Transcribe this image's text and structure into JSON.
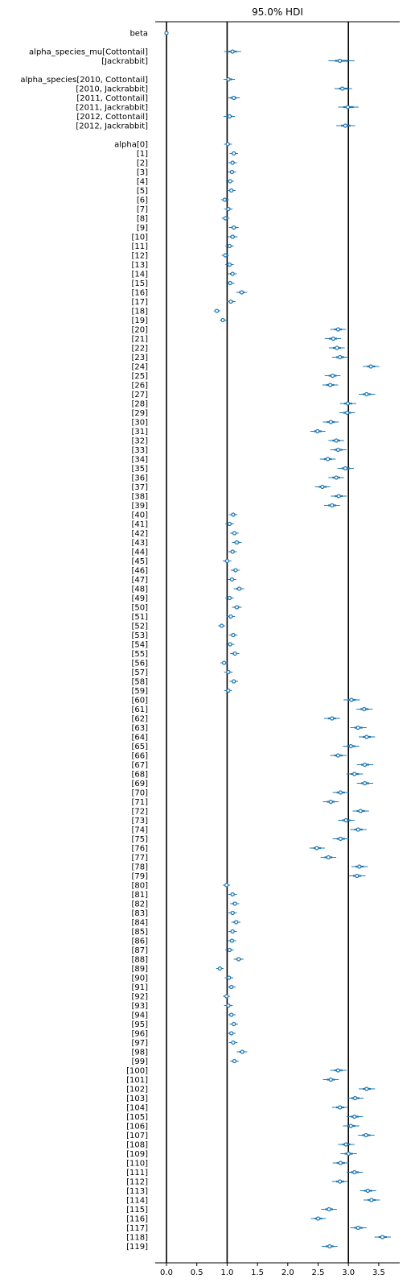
{
  "chart_data": {
    "type": "forest",
    "title": "95.0% HDI",
    "xlim": [
      -0.2,
      3.85
    ],
    "xticks": [
      "0.0",
      "0.5",
      "1.0",
      "1.5",
      "2.0",
      "2.5",
      "3.0",
      "3.5"
    ],
    "reference_lines": [
      0,
      1,
      3
    ],
    "series_color": "#1f77b4",
    "rows": [
      {
        "label": "beta",
        "mean": 0.0,
        "hdi": [
          -0.01,
          0.01
        ]
      },
      {
        "label": "",
        "gap": true
      },
      {
        "label": "alpha_species_mu[Cottontail]",
        "mean": 1.09,
        "hdi": [
          0.95,
          1.23
        ]
      },
      {
        "label": "[Jackrabbit]",
        "mean": 2.86,
        "hdi": [
          2.67,
          3.1
        ]
      },
      {
        "label": "",
        "gap": true
      },
      {
        "label": "alpha_species[2010, Cottontail]",
        "mean": 1.02,
        "hdi": [
          0.94,
          1.13
        ]
      },
      {
        "label": "[2010, Jackrabbit]",
        "mean": 2.9,
        "hdi": [
          2.77,
          3.06
        ]
      },
      {
        "label": "[2011, Cottontail]",
        "mean": 1.11,
        "hdi": [
          1.0,
          1.21
        ]
      },
      {
        "label": "[2011, Jackrabbit]",
        "mean": 2.99,
        "hdi": [
          2.83,
          3.17
        ]
      },
      {
        "label": "[2012, Cottontail]",
        "mean": 1.04,
        "hdi": [
          0.94,
          1.13
        ]
      },
      {
        "label": "[2012, Jackrabbit]",
        "mean": 2.95,
        "hdi": [
          2.8,
          3.11
        ]
      },
      {
        "label": "",
        "gap": true
      },
      {
        "label": "alpha[0]",
        "mean": 1.01,
        "hdi": [
          0.95,
          1.08
        ]
      },
      {
        "label": "[1]",
        "mean": 1.11,
        "hdi": [
          1.04,
          1.18
        ]
      },
      {
        "label": "[2]",
        "mean": 1.09,
        "hdi": [
          1.02,
          1.16
        ]
      },
      {
        "label": "[3]",
        "mean": 1.08,
        "hdi": [
          1.01,
          1.15
        ]
      },
      {
        "label": "[4]",
        "mean": 1.05,
        "hdi": [
          0.98,
          1.11
        ]
      },
      {
        "label": "[5]",
        "mean": 1.07,
        "hdi": [
          1.0,
          1.14
        ]
      },
      {
        "label": "[6]",
        "mean": 0.96,
        "hdi": [
          0.9,
          1.03
        ]
      },
      {
        "label": "[7]",
        "mean": 1.02,
        "hdi": [
          0.95,
          1.09
        ]
      },
      {
        "label": "[8]",
        "mean": 0.97,
        "hdi": [
          0.91,
          1.04
        ]
      },
      {
        "label": "[9]",
        "mean": 1.11,
        "hdi": [
          1.03,
          1.19
        ]
      },
      {
        "label": "[10]",
        "mean": 1.09,
        "hdi": [
          1.01,
          1.17
        ]
      },
      {
        "label": "[11]",
        "mean": 1.04,
        "hdi": [
          0.97,
          1.11
        ]
      },
      {
        "label": "[12]",
        "mean": 0.97,
        "hdi": [
          0.91,
          1.03
        ]
      },
      {
        "label": "[13]",
        "mean": 1.04,
        "hdi": [
          0.97,
          1.11
        ]
      },
      {
        "label": "[14]",
        "mean": 1.09,
        "hdi": [
          1.01,
          1.16
        ]
      },
      {
        "label": "[15]",
        "mean": 1.05,
        "hdi": [
          0.98,
          1.12
        ]
      },
      {
        "label": "[16]",
        "mean": 1.24,
        "hdi": [
          1.15,
          1.33
        ]
      },
      {
        "label": "[17]",
        "mean": 1.06,
        "hdi": [
          0.99,
          1.14
        ]
      },
      {
        "label": "[18]",
        "mean": 0.83,
        "hdi": [
          0.78,
          0.89
        ]
      },
      {
        "label": "[19]",
        "mean": 0.93,
        "hdi": [
          0.88,
          0.99
        ]
      },
      {
        "label": "[20]",
        "mean": 2.83,
        "hdi": [
          2.7,
          2.96
        ]
      },
      {
        "label": "[21]",
        "mean": 2.75,
        "hdi": [
          2.61,
          2.88
        ]
      },
      {
        "label": "[22]",
        "mean": 2.81,
        "hdi": [
          2.68,
          2.94
        ]
      },
      {
        "label": "[23]",
        "mean": 2.86,
        "hdi": [
          2.73,
          3.0
        ]
      },
      {
        "label": "[24]",
        "mean": 3.37,
        "hdi": [
          3.24,
          3.51
        ]
      },
      {
        "label": "[25]",
        "mean": 2.74,
        "hdi": [
          2.61,
          2.87
        ]
      },
      {
        "label": "[26]",
        "mean": 2.7,
        "hdi": [
          2.57,
          2.83
        ]
      },
      {
        "label": "[27]",
        "mean": 3.3,
        "hdi": [
          3.17,
          3.44
        ]
      },
      {
        "label": "[28]",
        "mean": 2.99,
        "hdi": [
          2.86,
          3.13
        ]
      },
      {
        "label": "[29]",
        "mean": 2.98,
        "hdi": [
          2.85,
          3.11
        ]
      },
      {
        "label": "[30]",
        "mean": 2.71,
        "hdi": [
          2.58,
          2.84
        ]
      },
      {
        "label": "[31]",
        "mean": 2.49,
        "hdi": [
          2.37,
          2.62
        ]
      },
      {
        "label": "[32]",
        "mean": 2.8,
        "hdi": [
          2.67,
          2.93
        ]
      },
      {
        "label": "[33]",
        "mean": 2.83,
        "hdi": [
          2.7,
          2.97
        ]
      },
      {
        "label": "[34]",
        "mean": 2.66,
        "hdi": [
          2.53,
          2.79
        ]
      },
      {
        "label": "[35]",
        "mean": 2.95,
        "hdi": [
          2.82,
          3.09
        ]
      },
      {
        "label": "[36]",
        "mean": 2.8,
        "hdi": [
          2.67,
          2.93
        ]
      },
      {
        "label": "[37]",
        "mean": 2.57,
        "hdi": [
          2.45,
          2.7
        ]
      },
      {
        "label": "[38]",
        "mean": 2.84,
        "hdi": [
          2.71,
          2.97
        ]
      },
      {
        "label": "[39]",
        "mean": 2.73,
        "hdi": [
          2.6,
          2.86
        ]
      },
      {
        "label": "[40]",
        "mean": 1.1,
        "hdi": [
          1.03,
          1.17
        ]
      },
      {
        "label": "[41]",
        "mean": 1.04,
        "hdi": [
          0.97,
          1.11
        ]
      },
      {
        "label": "[42]",
        "mean": 1.12,
        "hdi": [
          1.05,
          1.19
        ]
      },
      {
        "label": "[43]",
        "mean": 1.16,
        "hdi": [
          1.08,
          1.24
        ]
      },
      {
        "label": "[44]",
        "mean": 1.09,
        "hdi": [
          1.02,
          1.16
        ]
      },
      {
        "label": "[45]",
        "mean": 1.0,
        "hdi": [
          0.93,
          1.07
        ]
      },
      {
        "label": "[46]",
        "mean": 1.14,
        "hdi": [
          1.06,
          1.21
        ]
      },
      {
        "label": "[47]",
        "mean": 1.08,
        "hdi": [
          1.01,
          1.15
        ]
      },
      {
        "label": "[48]",
        "mean": 1.2,
        "hdi": [
          1.11,
          1.28
        ]
      },
      {
        "label": "[49]",
        "mean": 1.04,
        "hdi": [
          0.97,
          1.11
        ]
      },
      {
        "label": "[50]",
        "mean": 1.16,
        "hdi": [
          1.08,
          1.24
        ]
      },
      {
        "label": "[51]",
        "mean": 1.06,
        "hdi": [
          0.99,
          1.13
        ]
      },
      {
        "label": "[52]",
        "mean": 0.91,
        "hdi": [
          0.85,
          0.97
        ]
      },
      {
        "label": "[53]",
        "mean": 1.1,
        "hdi": [
          1.03,
          1.17
        ]
      },
      {
        "label": "[54]",
        "mean": 1.05,
        "hdi": [
          0.98,
          1.12
        ]
      },
      {
        "label": "[55]",
        "mean": 1.13,
        "hdi": [
          1.05,
          1.2
        ]
      },
      {
        "label": "[56]",
        "mean": 0.95,
        "hdi": [
          0.89,
          1.01
        ]
      },
      {
        "label": "[57]",
        "mean": 1.02,
        "hdi": [
          0.95,
          1.09
        ]
      },
      {
        "label": "[58]",
        "mean": 1.11,
        "hdi": [
          1.04,
          1.18
        ]
      },
      {
        "label": "[59]",
        "mean": 1.02,
        "hdi": [
          0.95,
          1.08
        ]
      },
      {
        "label": "[60]",
        "mean": 3.05,
        "hdi": [
          2.92,
          3.19
        ]
      },
      {
        "label": "[61]",
        "mean": 3.26,
        "hdi": [
          3.13,
          3.4
        ]
      },
      {
        "label": "[62]",
        "mean": 2.73,
        "hdi": [
          2.6,
          2.86
        ]
      },
      {
        "label": "[63]",
        "mean": 3.16,
        "hdi": [
          3.03,
          3.3
        ]
      },
      {
        "label": "[64]",
        "mean": 3.3,
        "hdi": [
          3.17,
          3.44
        ]
      },
      {
        "label": "[65]",
        "mean": 3.04,
        "hdi": [
          2.91,
          3.18
        ]
      },
      {
        "label": "[66]",
        "mean": 2.83,
        "hdi": [
          2.7,
          2.97
        ]
      },
      {
        "label": "[67]",
        "mean": 3.27,
        "hdi": [
          3.14,
          3.41
        ]
      },
      {
        "label": "[68]",
        "mean": 3.1,
        "hdi": [
          2.97,
          3.24
        ]
      },
      {
        "label": "[69]",
        "mean": 3.27,
        "hdi": [
          3.14,
          3.41
        ]
      },
      {
        "label": "[70]",
        "mean": 2.87,
        "hdi": [
          2.74,
          3.01
        ]
      },
      {
        "label": "[71]",
        "mean": 2.71,
        "hdi": [
          2.58,
          2.84
        ]
      },
      {
        "label": "[72]",
        "mean": 3.2,
        "hdi": [
          3.07,
          3.34
        ]
      },
      {
        "label": "[73]",
        "mean": 2.96,
        "hdi": [
          2.83,
          3.1
        ]
      },
      {
        "label": "[74]",
        "mean": 3.16,
        "hdi": [
          3.03,
          3.3
        ]
      },
      {
        "label": "[75]",
        "mean": 2.87,
        "hdi": [
          2.74,
          3.01
        ]
      },
      {
        "label": "[76]",
        "mean": 2.48,
        "hdi": [
          2.36,
          2.61
        ]
      },
      {
        "label": "[77]",
        "mean": 2.67,
        "hdi": [
          2.54,
          2.8
        ]
      },
      {
        "label": "[78]",
        "mean": 3.18,
        "hdi": [
          3.05,
          3.32
        ]
      },
      {
        "label": "[79]",
        "mean": 3.14,
        "hdi": [
          3.01,
          3.28
        ]
      },
      {
        "label": "[80]",
        "mean": 0.99,
        "hdi": [
          0.93,
          1.05
        ]
      },
      {
        "label": "[81]",
        "mean": 1.09,
        "hdi": [
          1.02,
          1.16
        ]
      },
      {
        "label": "[82]",
        "mean": 1.13,
        "hdi": [
          1.05,
          1.2
        ]
      },
      {
        "label": "[83]",
        "mean": 1.09,
        "hdi": [
          1.02,
          1.16
        ]
      },
      {
        "label": "[84]",
        "mean": 1.15,
        "hdi": [
          1.07,
          1.22
        ]
      },
      {
        "label": "[85]",
        "mean": 1.09,
        "hdi": [
          1.02,
          1.16
        ]
      },
      {
        "label": "[86]",
        "mean": 1.08,
        "hdi": [
          1.01,
          1.15
        ]
      },
      {
        "label": "[87]",
        "mean": 1.04,
        "hdi": [
          0.97,
          1.11
        ]
      },
      {
        "label": "[88]",
        "mean": 1.19,
        "hdi": [
          1.11,
          1.27
        ]
      },
      {
        "label": "[89]",
        "mean": 0.88,
        "hdi": [
          0.82,
          0.94
        ]
      },
      {
        "label": "[90]",
        "mean": 1.03,
        "hdi": [
          0.96,
          1.1
        ]
      },
      {
        "label": "[91]",
        "mean": 1.07,
        "hdi": [
          1.0,
          1.14
        ]
      },
      {
        "label": "[92]",
        "mean": 0.99,
        "hdi": [
          0.93,
          1.05
        ]
      },
      {
        "label": "[93]",
        "mean": 1.02,
        "hdi": [
          0.95,
          1.09
        ]
      },
      {
        "label": "[94]",
        "mean": 1.07,
        "hdi": [
          1.0,
          1.14
        ]
      },
      {
        "label": "[95]",
        "mean": 1.11,
        "hdi": [
          1.04,
          1.18
        ]
      },
      {
        "label": "[96]",
        "mean": 1.07,
        "hdi": [
          1.0,
          1.14
        ]
      },
      {
        "label": "[97]",
        "mean": 1.1,
        "hdi": [
          1.03,
          1.17
        ]
      },
      {
        "label": "[98]",
        "mean": 1.25,
        "hdi": [
          1.16,
          1.33
        ]
      },
      {
        "label": "[99]",
        "mean": 1.12,
        "hdi": [
          1.05,
          1.19
        ]
      },
      {
        "label": "[100]",
        "mean": 2.83,
        "hdi": [
          2.7,
          2.97
        ]
      },
      {
        "label": "[101]",
        "mean": 2.71,
        "hdi": [
          2.58,
          2.84
        ]
      },
      {
        "label": "[102]",
        "mean": 3.3,
        "hdi": [
          3.17,
          3.44
        ]
      },
      {
        "label": "[103]",
        "mean": 3.11,
        "hdi": [
          2.98,
          3.25
        ]
      },
      {
        "label": "[104]",
        "mean": 2.86,
        "hdi": [
          2.73,
          3.0
        ]
      },
      {
        "label": "[105]",
        "mean": 3.1,
        "hdi": [
          2.97,
          3.24
        ]
      },
      {
        "label": "[106]",
        "mean": 3.04,
        "hdi": [
          2.91,
          3.18
        ]
      },
      {
        "label": "[107]",
        "mean": 3.29,
        "hdi": [
          3.16,
          3.43
        ]
      },
      {
        "label": "[108]",
        "mean": 2.96,
        "hdi": [
          2.83,
          3.1
        ]
      },
      {
        "label": "[109]",
        "mean": 3.0,
        "hdi": [
          2.87,
          3.14
        ]
      },
      {
        "label": "[110]",
        "mean": 2.87,
        "hdi": [
          2.74,
          3.01
        ]
      },
      {
        "label": "[111]",
        "mean": 3.1,
        "hdi": [
          2.97,
          3.24
        ]
      },
      {
        "label": "[112]",
        "mean": 2.86,
        "hdi": [
          2.73,
          3.0
        ]
      },
      {
        "label": "[113]",
        "mean": 3.32,
        "hdi": [
          3.19,
          3.46
        ]
      },
      {
        "label": "[114]",
        "mean": 3.38,
        "hdi": [
          3.25,
          3.52
        ]
      },
      {
        "label": "[115]",
        "mean": 2.68,
        "hdi": [
          2.55,
          2.81
        ]
      },
      {
        "label": "[116]",
        "mean": 2.5,
        "hdi": [
          2.38,
          2.63
        ]
      },
      {
        "label": "[117]",
        "mean": 3.16,
        "hdi": [
          3.03,
          3.3
        ]
      },
      {
        "label": "[118]",
        "mean": 3.56,
        "hdi": [
          3.43,
          3.7
        ]
      },
      {
        "label": "[119]",
        "mean": 2.69,
        "hdi": [
          2.56,
          2.82
        ]
      }
    ]
  }
}
